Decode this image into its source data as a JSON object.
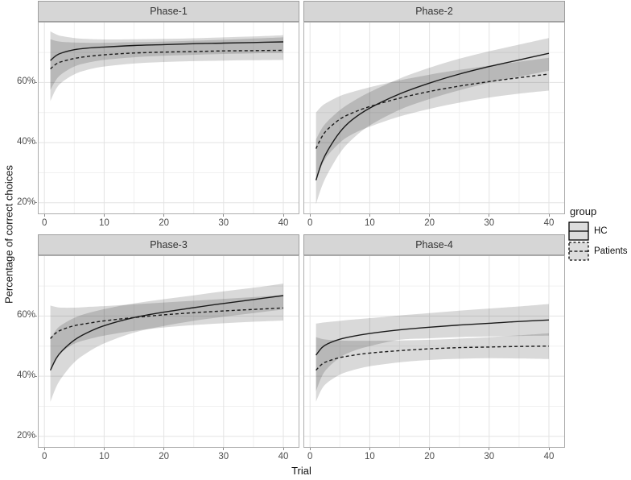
{
  "legend": {
    "title": "group",
    "position": "right",
    "items": [
      {
        "label": "HC",
        "linetype": "solid"
      },
      {
        "label": "Patients",
        "linetype": "dashed"
      }
    ]
  },
  "colors": {
    "line": "#1a1a1a",
    "ribbon_fill": "rgba(0,0,0,0.15)",
    "grid_major": "#e3e3e3",
    "grid_minor": "#f0f0f0",
    "panel_border": "#adadad",
    "strip_bg": "#d6d6d6",
    "strip_border": "#9e9e9e",
    "axis_text": "#4d4d4d",
    "legend_key_fill": "#dcdcdc"
  },
  "chart_data": {
    "type": "line",
    "title": "",
    "xlabel": "Trial",
    "ylabel": "Percentage of correct choices",
    "xlim": [
      -1.1,
      42.7
    ],
    "ylim": [
      16.2,
      80.2
    ],
    "grid": true,
    "x_ticks": [
      {
        "value": 0,
        "label": "0"
      },
      {
        "value": 10,
        "label": "10"
      },
      {
        "value": 20,
        "label": "20"
      },
      {
        "value": 30,
        "label": "30"
      },
      {
        "value": 40,
        "label": "40"
      }
    ],
    "x_minor_ticks": [
      5,
      15,
      25,
      35
    ],
    "y_ticks": [
      {
        "value": 60,
        "label": "60%"
      },
      {
        "value": 40,
        "label": "40%"
      },
      {
        "value": 20,
        "label": "20%"
      }
    ],
    "y_minor_ticks": [
      30,
      50,
      70
    ],
    "legend": {
      "title": "group",
      "entries": [
        "HC",
        "Patients"
      ]
    },
    "x": [
      1,
      2,
      3,
      5,
      7,
      10,
      15,
      20,
      25,
      30,
      35,
      40
    ],
    "facets": [
      {
        "label": "Phase-1",
        "series": [
          {
            "name": "HC",
            "linetype": "solid",
            "values": [
              67.3,
              69.0,
              69.9,
              70.9,
              71.4,
              71.8,
              72.3,
              72.6,
              72.9,
              73.1,
              73.3,
              73.5
            ],
            "ci_high": [
              77.0,
              76.0,
              75.4,
              74.8,
              74.5,
              74.3,
              74.4,
              74.5,
              74.7,
              75.0,
              75.3,
              75.7
            ],
            "ci_low": [
              57.5,
              61.0,
              63.0,
              65.3,
              66.5,
              67.5,
              68.4,
              68.9,
              69.2,
              69.5,
              69.7,
              69.8
            ]
          },
          {
            "name": "Patients",
            "linetype": "dashed",
            "values": [
              64.5,
              66.2,
              67.0,
              68.0,
              68.6,
              69.2,
              69.8,
              70.1,
              70.3,
              70.5,
              70.6,
              70.7
            ],
            "ci_high": [
              74.4,
              73.8,
              73.5,
              73.3,
              73.2,
              73.2,
              73.4,
              73.6,
              73.9,
              74.2,
              74.6,
              75.0
            ],
            "ci_low": [
              53.8,
              58.0,
              60.2,
              62.7,
              64.1,
              65.3,
              66.3,
              66.8,
              67.1,
              67.3,
              67.4,
              67.5
            ]
          }
        ]
      },
      {
        "label": "Phase-2",
        "series": [
          {
            "name": "HC",
            "linetype": "solid",
            "values": [
              27.5,
              33.5,
              37.5,
              43.5,
              47.5,
              51.5,
              56.2,
              59.8,
              62.8,
              65.3,
              67.5,
              69.7
            ],
            "ci_high": [
              41.0,
              44.8,
              47.2,
              50.8,
              53.5,
              56.8,
              61.3,
              64.9,
              67.9,
              70.4,
              72.6,
              74.8
            ],
            "ci_low": [
              19.5,
              25.5,
              29.8,
              36.5,
              41.0,
              45.7,
              50.9,
              54.5,
              57.4,
              59.9,
              61.9,
              63.9
            ]
          },
          {
            "name": "Patients",
            "linetype": "dashed",
            "values": [
              38.0,
              42.0,
              44.5,
              47.8,
              49.8,
              52.0,
              54.8,
              57.0,
              58.8,
              60.3,
              61.6,
              62.8
            ],
            "ci_high": [
              50.0,
              52.2,
              53.5,
              55.5,
              56.8,
              58.4,
              60.7,
              62.6,
              64.2,
              65.6,
              66.9,
              68.2
            ],
            "ci_low": [
              28.0,
              32.5,
              35.8,
              40.0,
              42.7,
              45.3,
              48.7,
              51.2,
              53.3,
              55.0,
              56.3,
              57.3
            ]
          }
        ]
      },
      {
        "label": "Phase-3",
        "series": [
          {
            "name": "HC",
            "linetype": "solid",
            "values": [
              42.0,
              46.0,
              48.5,
              52.0,
              54.3,
              56.8,
              59.5,
              61.3,
              62.8,
              64.2,
              65.5,
              66.8
            ],
            "ci_high": [
              52.5,
              55.5,
              57.2,
              59.4,
              60.8,
              62.3,
              64.2,
              65.6,
              66.9,
              68.2,
              69.4,
              70.8
            ],
            "ci_low": [
              31.5,
              36.5,
              39.8,
              44.6,
              47.6,
              50.9,
              54.5,
              56.7,
              58.4,
              59.8,
              61.0,
              62.2
            ]
          },
          {
            "name": "Patients",
            "linetype": "dashed",
            "values": [
              52.5,
              54.5,
              55.5,
              56.8,
              57.5,
              58.4,
              59.5,
              60.4,
              61.1,
              61.7,
              62.2,
              62.7
            ],
            "ci_high": [
              63.5,
              63.0,
              62.8,
              62.8,
              63.0,
              63.3,
              63.9,
              64.5,
              65.1,
              65.7,
              66.3,
              67.0
            ],
            "ci_low": [
              41.5,
              45.8,
              48.2,
              50.8,
              52.1,
              53.5,
              55.1,
              56.2,
              57.0,
              57.6,
              58.1,
              58.5
            ]
          }
        ]
      },
      {
        "label": "Phase-4",
        "series": [
          {
            "name": "HC",
            "linetype": "solid",
            "values": [
              47.0,
              49.5,
              50.8,
              52.3,
              53.2,
              54.2,
              55.4,
              56.3,
              57.0,
              57.6,
              58.2,
              58.7
            ],
            "ci_high": [
              57.5,
              57.8,
              58.0,
              58.4,
              58.8,
              59.3,
              60.2,
              61.0,
              61.8,
              62.5,
              63.2,
              64.0
            ],
            "ci_low": [
              35.0,
              40.0,
              42.8,
              46.2,
              48.2,
              50.0,
              52.1,
              52.6,
              53.0,
              53.2,
              53.4,
              53.5
            ]
          },
          {
            "name": "Patients",
            "linetype": "dashed",
            "values": [
              42.0,
              44.0,
              45.0,
              46.2,
              46.9,
              47.7,
              48.5,
              49.1,
              49.5,
              49.7,
              49.9,
              50.0
            ],
            "ci_high": [
              53.0,
              52.4,
              52.1,
              51.9,
              51.8,
              51.8,
              51.9,
              52.1,
              52.5,
              53.0,
              53.6,
              54.3
            ],
            "ci_low": [
              31.5,
              35.8,
              38.0,
              40.5,
              41.9,
              43.3,
              44.6,
              45.4,
              45.8,
              46.0,
              45.9,
              45.7
            ]
          }
        ]
      }
    ]
  }
}
